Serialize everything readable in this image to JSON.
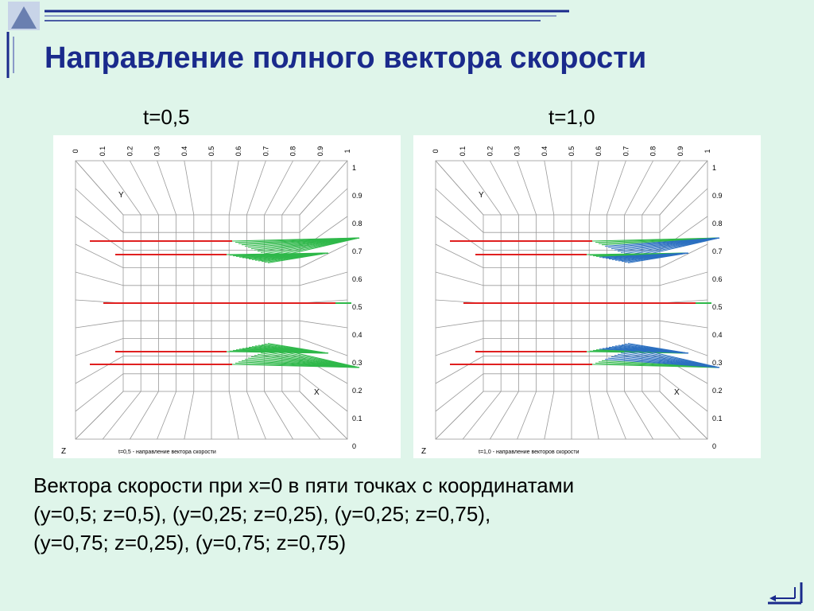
{
  "slide": {
    "title": "Направление полного вектора скорости",
    "body_lines": [
      "Вектора скорости при x=0 в пяти точках с координатами",
      "(y=0,5; z=0,5), (y=0,25; z=0,25), (y=0,25; z=0,75),",
      "(y=0,75; z=0,25), (y=0,75; z=0,75)"
    ]
  },
  "plots": [
    {
      "label": "t=0,5",
      "caption": "t=0,5 - направление вектора скорости",
      "axis_y": "Y",
      "axis_x": "X",
      "axis_z": "Z",
      "top_ticks": [
        "0",
        "0.1",
        "0.2",
        "0.3",
        "0.4",
        "0.5",
        "0.6",
        "0.7",
        "0.8",
        "0.9",
        "1"
      ],
      "right_ticks": [
        "1",
        "0.9",
        "0.8",
        "0.7",
        "0.6",
        "0.5",
        "0.4",
        "0.3",
        "0.2",
        "0.1",
        "0"
      ]
    },
    {
      "label": "t=1,0",
      "caption": "t=1,0 - направление векторов скорости",
      "axis_y": "Y",
      "axis_x": "X",
      "axis_z": "Z",
      "top_ticks": [
        "0",
        "0.1",
        "0.2",
        "0.3",
        "0.4",
        "0.5",
        "0.6",
        "0.7",
        "0.8",
        "0.9",
        "1"
      ],
      "right_ticks": [
        "1",
        "0.9",
        "0.8",
        "0.7",
        "0.6",
        "0.5",
        "0.4",
        "0.3",
        "0.2",
        "0.1",
        "0"
      ]
    }
  ],
  "colors": {
    "title": "#1a2a8c",
    "background": "#dff5ea",
    "streamline": "#e02020",
    "vector_green": "#2fb84a",
    "vector_blue": "#2a6fc0"
  }
}
